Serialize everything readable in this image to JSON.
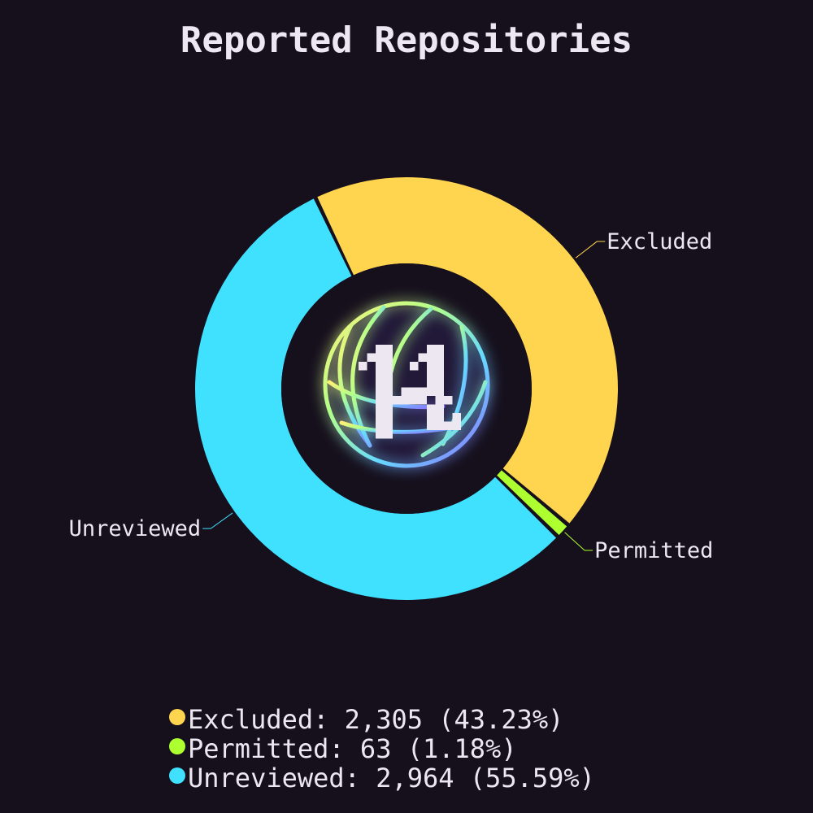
{
  "chart_data": {
    "type": "pie",
    "subtype": "donut",
    "title": "Reported Repositories",
    "slices": [
      {
        "label": "Excluded",
        "value": 2305,
        "percent": 43.23,
        "color": "#ffd54f"
      },
      {
        "label": "Permitted",
        "value": 63,
        "percent": 1.18,
        "color": "#adff2f"
      },
      {
        "label": "Unreviewed",
        "value": 2964,
        "percent": 55.59,
        "color": "#40e0ff"
      }
    ],
    "legend": {
      "position": "bottom",
      "entries": [
        "Excluded: 2,305 (43.23%)",
        "Permitted: 63 (1.18%)",
        "Unreviewed: 2,964 (55.59%)"
      ]
    }
  },
  "theme": {
    "background": "#16101d",
    "text": "#ece7f1"
  },
  "center": {
    "logo_icon": "pixel-glyph-globe-icon"
  }
}
